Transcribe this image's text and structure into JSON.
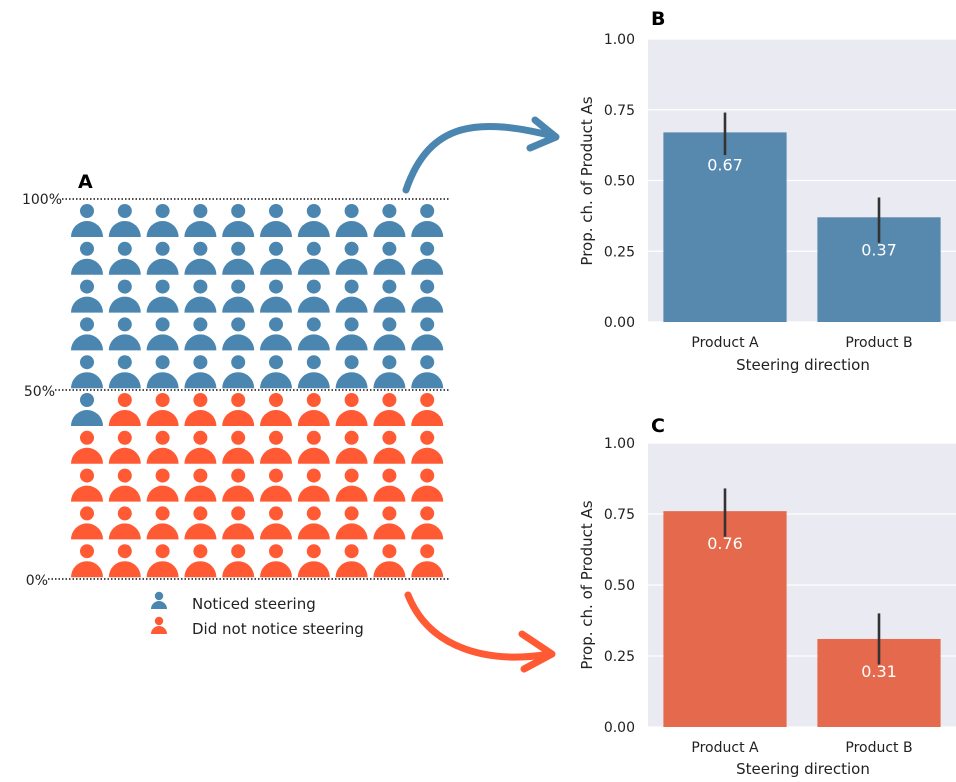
{
  "chart_data": [
    {
      "panel": "A",
      "type": "waffle",
      "ticks": [
        "100%",
        "50%",
        "0%"
      ],
      "rows": 10,
      "columns": 10,
      "total": 100,
      "series": [
        {
          "name": "Noticed steering",
          "count": 51,
          "color": "#4a86b0"
        },
        {
          "name": "Did not notice steering",
          "count": 49,
          "color": "#ff5a33"
        }
      ],
      "icon": "person-icon"
    },
    {
      "panel": "B",
      "type": "bar",
      "categories": [
        "Product A",
        "Product B"
      ],
      "values": [
        0.67,
        0.37
      ],
      "value_labels": [
        "0.67",
        "0.37"
      ],
      "error_bars": [
        [
          0.59,
          0.74
        ],
        [
          0.28,
          0.44
        ]
      ],
      "xlabel": "Steering direction",
      "ylabel": "Prop. ch. of Product As",
      "ylim": [
        0,
        1
      ],
      "yticks": [
        "0.00",
        "0.25",
        "0.50",
        "0.75",
        "1.00"
      ],
      "grid": true,
      "color": "#5788ad",
      "background": "#eaeaf2"
    },
    {
      "panel": "C",
      "type": "bar",
      "categories": [
        "Product A",
        "Product B"
      ],
      "values": [
        0.76,
        0.31
      ],
      "value_labels": [
        "0.76",
        "0.31"
      ],
      "error_bars": [
        [
          0.67,
          0.84
        ],
        [
          0.22,
          0.4
        ]
      ],
      "xlabel": "Steering direction",
      "ylabel": "Prop. ch. of Product As",
      "ylim": [
        0,
        1
      ],
      "yticks": [
        "0.00",
        "0.25",
        "0.50",
        "0.75",
        "1.00"
      ],
      "grid": true,
      "color": "#e5694d",
      "background": "#eaeaf2"
    }
  ],
  "arrow_colors": {
    "top": "#4a86b0",
    "bottom": "#ff5a33"
  },
  "error_bar_color": "#333333"
}
